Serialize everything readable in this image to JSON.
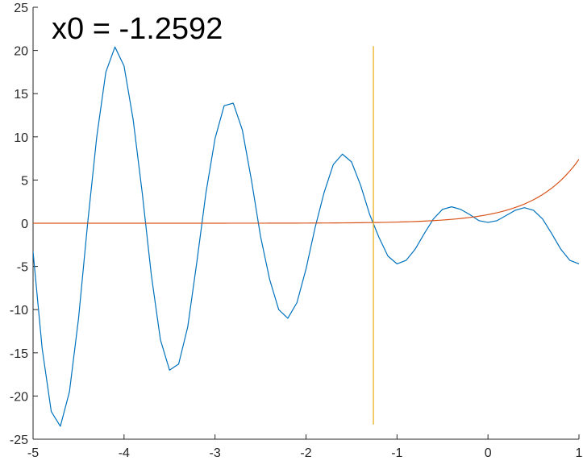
{
  "chart_data": {
    "type": "line",
    "annotation": "x0 = -1.2592",
    "xlim": [
      -5,
      1
    ],
    "ylim": [
      -25,
      25
    ],
    "xticks": [
      -5,
      -4,
      -3,
      -2,
      -1,
      0,
      1
    ],
    "yticks": [
      -25,
      -20,
      -15,
      -10,
      -5,
      0,
      5,
      10,
      15,
      20,
      25
    ],
    "xtick_labels": [
      "-5",
      "-4",
      "-3",
      "-2",
      "-1",
      "0",
      "1"
    ],
    "ytick_labels": [
      "-25",
      "-20",
      "-15",
      "-10",
      "-5",
      "0",
      "5",
      "10",
      "15",
      "20",
      "25"
    ],
    "grid": false,
    "series": [
      {
        "kind": "oscillating",
        "color": "#0072BD",
        "points": [
          [
            -5.0,
            -3.3
          ],
          [
            -4.9,
            -14.5
          ],
          [
            -4.8,
            -21.8
          ],
          [
            -4.7,
            -23.5
          ],
          [
            -4.6,
            -19.5
          ],
          [
            -4.5,
            -11.0
          ],
          [
            -4.4,
            0.0
          ],
          [
            -4.3,
            10.0
          ],
          [
            -4.2,
            17.5
          ],
          [
            -4.1,
            20.4
          ],
          [
            -4.0,
            18.2
          ],
          [
            -3.9,
            12.0
          ],
          [
            -3.8,
            3.5
          ],
          [
            -3.7,
            -6.0
          ],
          [
            -3.6,
            -13.5
          ],
          [
            -3.5,
            -17.0
          ],
          [
            -3.4,
            -16.3
          ],
          [
            -3.3,
            -12.0
          ],
          [
            -3.2,
            -4.5
          ],
          [
            -3.1,
            3.5
          ],
          [
            -3.0,
            9.8
          ],
          [
            -2.9,
            13.6
          ],
          [
            -2.8,
            13.9
          ],
          [
            -2.7,
            10.8
          ],
          [
            -2.6,
            5.0
          ],
          [
            -2.5,
            -1.5
          ],
          [
            -2.4,
            -6.5
          ],
          [
            -2.3,
            -10.0
          ],
          [
            -2.2,
            -11.0
          ],
          [
            -2.1,
            -9.2
          ],
          [
            -2.0,
            -5.3
          ],
          [
            -1.9,
            -0.5
          ],
          [
            -1.8,
            3.6
          ],
          [
            -1.7,
            6.8
          ],
          [
            -1.6,
            8.0
          ],
          [
            -1.5,
            7.1
          ],
          [
            -1.4,
            4.4
          ],
          [
            -1.3,
            1.0
          ],
          [
            -1.2,
            -1.6
          ],
          [
            -1.1,
            -3.8
          ],
          [
            -1.0,
            -4.7
          ],
          [
            -0.9,
            -4.3
          ],
          [
            -0.8,
            -3.0
          ],
          [
            -0.7,
            -1.2
          ],
          [
            -0.6,
            0.5
          ],
          [
            -0.5,
            1.6
          ],
          [
            -0.4,
            1.9
          ],
          [
            -0.3,
            1.6
          ],
          [
            -0.2,
            1.0
          ],
          [
            -0.1,
            0.3
          ],
          [
            0.0,
            0.1
          ],
          [
            0.1,
            0.3
          ],
          [
            0.2,
            0.9
          ],
          [
            0.3,
            1.5
          ],
          [
            0.4,
            1.8
          ],
          [
            0.5,
            1.5
          ],
          [
            0.6,
            0.5
          ],
          [
            0.7,
            -1.2
          ],
          [
            0.8,
            -3.0
          ],
          [
            0.9,
            -4.3
          ],
          [
            1.0,
            -4.7
          ]
        ]
      },
      {
        "kind": "exponential",
        "color": "#D95319",
        "points": [
          [
            -5.0,
            0.007
          ],
          [
            -4.5,
            0.011
          ],
          [
            -4.0,
            0.018
          ],
          [
            -3.5,
            0.03
          ],
          [
            -3.0,
            0.05
          ],
          [
            -2.5,
            0.082
          ],
          [
            -2.0,
            0.135
          ],
          [
            -1.75,
            0.174
          ],
          [
            -1.5,
            0.223
          ],
          [
            -1.25,
            0.287
          ],
          [
            -1.0,
            0.368
          ],
          [
            -0.8,
            0.449
          ],
          [
            -0.6,
            0.549
          ],
          [
            -0.4,
            0.67
          ],
          [
            -0.2,
            0.819
          ],
          [
            0.0,
            1.0
          ],
          [
            0.1,
            1.105
          ],
          [
            0.2,
            1.221
          ],
          [
            0.3,
            1.35
          ],
          [
            0.4,
            1.492
          ],
          [
            0.5,
            1.649
          ],
          [
            0.6,
            1.822
          ],
          [
            0.7,
            2.014
          ],
          [
            0.8,
            2.226
          ],
          [
            0.9,
            2.46
          ],
          [
            1.0,
            2.718
          ]
        ],
        "scale": 2.718
      },
      {
        "kind": "vertical-marker",
        "color": "#EDB120",
        "x": -1.2592,
        "y_range": [
          -23.3,
          20.5
        ]
      }
    ]
  }
}
